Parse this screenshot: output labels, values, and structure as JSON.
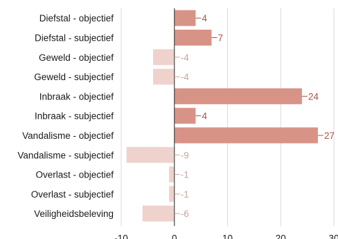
{
  "chart_data": {
    "type": "bar",
    "orientation": "horizontal",
    "title": "",
    "xlabel": "",
    "ylabel": "",
    "categories": [
      "Diefstal - objectief",
      "Diefstal - subjectief",
      "Geweld - objectief",
      "Geweld - subjectief",
      "Inbraak - objectief",
      "Inbraak - subjectief",
      "Vandalisme - objectief",
      "Vandalisme - subjectief",
      "Overlast - objectief",
      "Overlast - subjectief",
      "Veiligheidsbeleving"
    ],
    "values": [
      4,
      7,
      -4,
      -4,
      24,
      4,
      27,
      -9,
      -1,
      -1,
      -6
    ],
    "value_labels": [
      "4",
      "7",
      "-4",
      "-4",
      "24",
      "4",
      "27",
      "-9",
      "-1",
      "-1",
      "-6"
    ],
    "xlim": [
      -10,
      30
    ],
    "xticks": [
      -10,
      0,
      10,
      20,
      30
    ],
    "xtick_labels": [
      "-10",
      "0",
      "10",
      "20",
      "30"
    ],
    "grid": "vertical",
    "legend": "none",
    "colors": {
      "positive_bar": "#d89387",
      "negative_bar": "#f0d2cd",
      "positive_label": "#a25545",
      "negative_label": "#c9a49c",
      "grid": "#d9d9d9",
      "zero_line": "#444444"
    }
  }
}
